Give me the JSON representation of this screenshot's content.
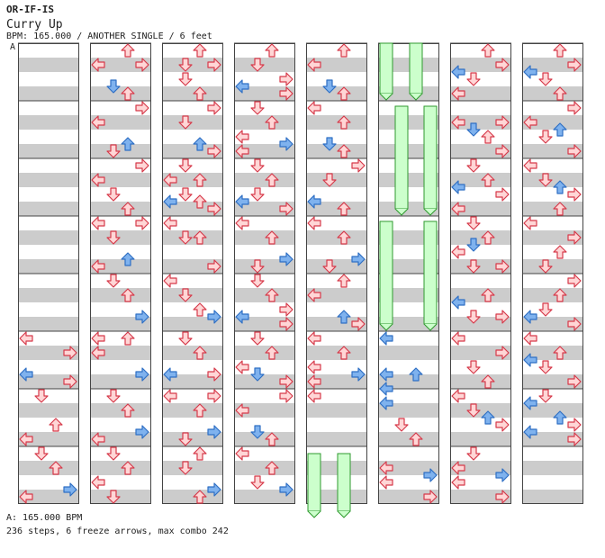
{
  "song": {
    "artist": "OR-IF-IS",
    "title": "Curry Up",
    "meta": "BPM: 165.000 / ANOTHER SINGLE / 6 feet",
    "bpm_marker": "A"
  },
  "footer": {
    "bpm_line": "A: 165.000 BPM",
    "stats_line": "236 steps, 6 freeze arrows, max combo 242"
  },
  "colors": {
    "stripe": "#cccccc",
    "column_bg": "#ffffff",
    "border": "#444444",
    "arrow_pink_fill": "#ffd6d6",
    "arrow_pink_stroke": "#d63a4a",
    "arrow_blue_fill": "#7fb2ee",
    "arrow_blue_stroke": "#2f6fc4",
    "freeze_fill": "#ccffcc",
    "freeze_stroke": "#2f9a2f"
  },
  "icons": [
    "left-arrow-icon",
    "down-arrow-icon",
    "up-arrow-icon",
    "right-arrow-icon"
  ],
  "chart_data": {
    "type": "table",
    "columns": 8,
    "measures_per_column": 8,
    "lanes": [
      "left",
      "down",
      "up",
      "right"
    ],
    "arrow_colors": {
      "pink": "4th notes",
      "blue": "8th notes"
    }
  }
}
